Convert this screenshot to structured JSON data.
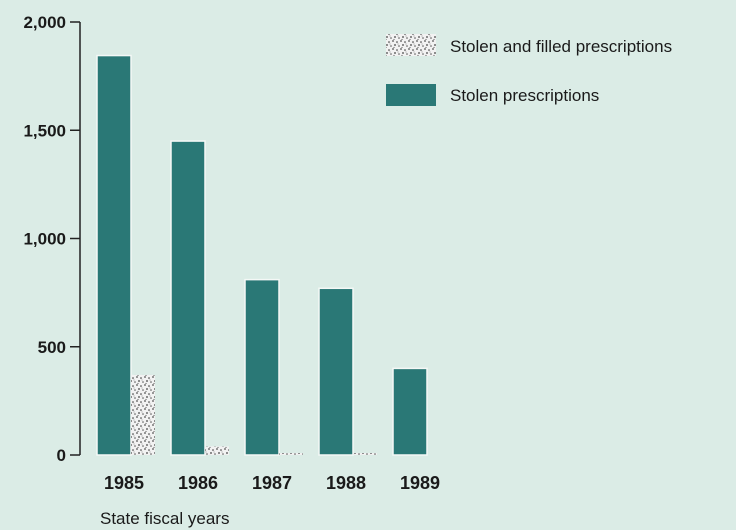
{
  "chart_data": {
    "type": "bar",
    "categories": [
      "1985",
      "1986",
      "1987",
      "1988",
      "1989"
    ],
    "series": [
      {
        "name": "Stolen prescriptions",
        "values": [
          1845,
          1450,
          810,
          770,
          400
        ],
        "color": "#2a7876"
      },
      {
        "name": "Stolen and filled prescriptions",
        "values": [
          370,
          40,
          5,
          5,
          0
        ],
        "color": "#8a8a8a"
      }
    ],
    "xlabel": "State fiscal years",
    "ylabel": "",
    "ylim": [
      0,
      2000
    ],
    "yticks": [
      0,
      500,
      1000,
      1500,
      2000
    ],
    "ytick_labels": [
      "0",
      "500",
      "1,000",
      "1,500",
      "2,000"
    ],
    "legend": [
      {
        "label": "Stolen and filled prescriptions",
        "pattern": "speckled"
      },
      {
        "label": "Stolen prescriptions",
        "pattern": "solid"
      }
    ],
    "legend_position": "top-right",
    "grid": false
  }
}
